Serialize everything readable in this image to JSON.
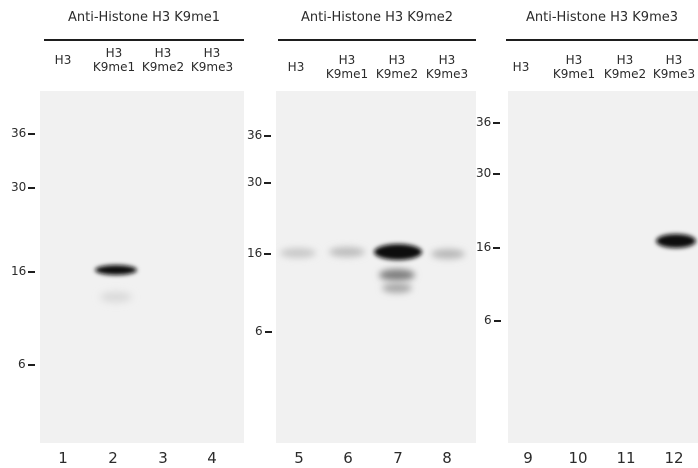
{
  "panels": [
    {
      "title": "Anti-Histone H3 K9me1",
      "lanes": [
        {
          "line1": "",
          "line2": "H3",
          "number": "1"
        },
        {
          "line1": "H3",
          "line2": "K9me1",
          "number": "2"
        },
        {
          "line1": "H3",
          "line2": "K9me2",
          "number": "3"
        },
        {
          "line1": "H3",
          "line2": "K9me3",
          "number": "4"
        }
      ],
      "markers": [
        "36",
        "30",
        "16",
        "6"
      ],
      "bands": [
        {
          "lane": 2,
          "marker": "16",
          "intensity": 0.95
        },
        {
          "lane": 2,
          "marker": "16-sub",
          "intensity": 0.12
        }
      ]
    },
    {
      "title": "Anti-Histone H3 K9me2",
      "lanes": [
        {
          "line1": "",
          "line2": "H3",
          "number": "5"
        },
        {
          "line1": "H3",
          "line2": "K9me1",
          "number": "6"
        },
        {
          "line1": "H3",
          "line2": "K9me2",
          "number": "7"
        },
        {
          "line1": "H3",
          "line2": "K9me3",
          "number": "8"
        }
      ],
      "markers": [
        "36",
        "30",
        "16",
        "6"
      ],
      "bands": [
        {
          "lane": 5,
          "marker": "16",
          "intensity": 0.12
        },
        {
          "lane": 6,
          "marker": "16",
          "intensity": 0.18
        },
        {
          "lane": 7,
          "marker": "16",
          "intensity": 1.0
        },
        {
          "lane": 7,
          "marker": "16-sub",
          "intensity": 0.55
        },
        {
          "lane": 8,
          "marker": "16",
          "intensity": 0.2
        }
      ]
    },
    {
      "title": "Anti-Histone H3 K9me3",
      "lanes": [
        {
          "line1": "",
          "line2": "H3",
          "number": "9"
        },
        {
          "line1": "H3",
          "line2": "K9me1",
          "number": "10"
        },
        {
          "line1": "H3",
          "line2": "K9me2",
          "number": "11"
        },
        {
          "line1": "H3",
          "line2": "K9me3",
          "number": "12"
        }
      ],
      "markers": [
        "36",
        "30",
        "16",
        "6"
      ],
      "bands": [
        {
          "lane": 12,
          "marker": "16",
          "intensity": 1.0
        }
      ]
    }
  ]
}
